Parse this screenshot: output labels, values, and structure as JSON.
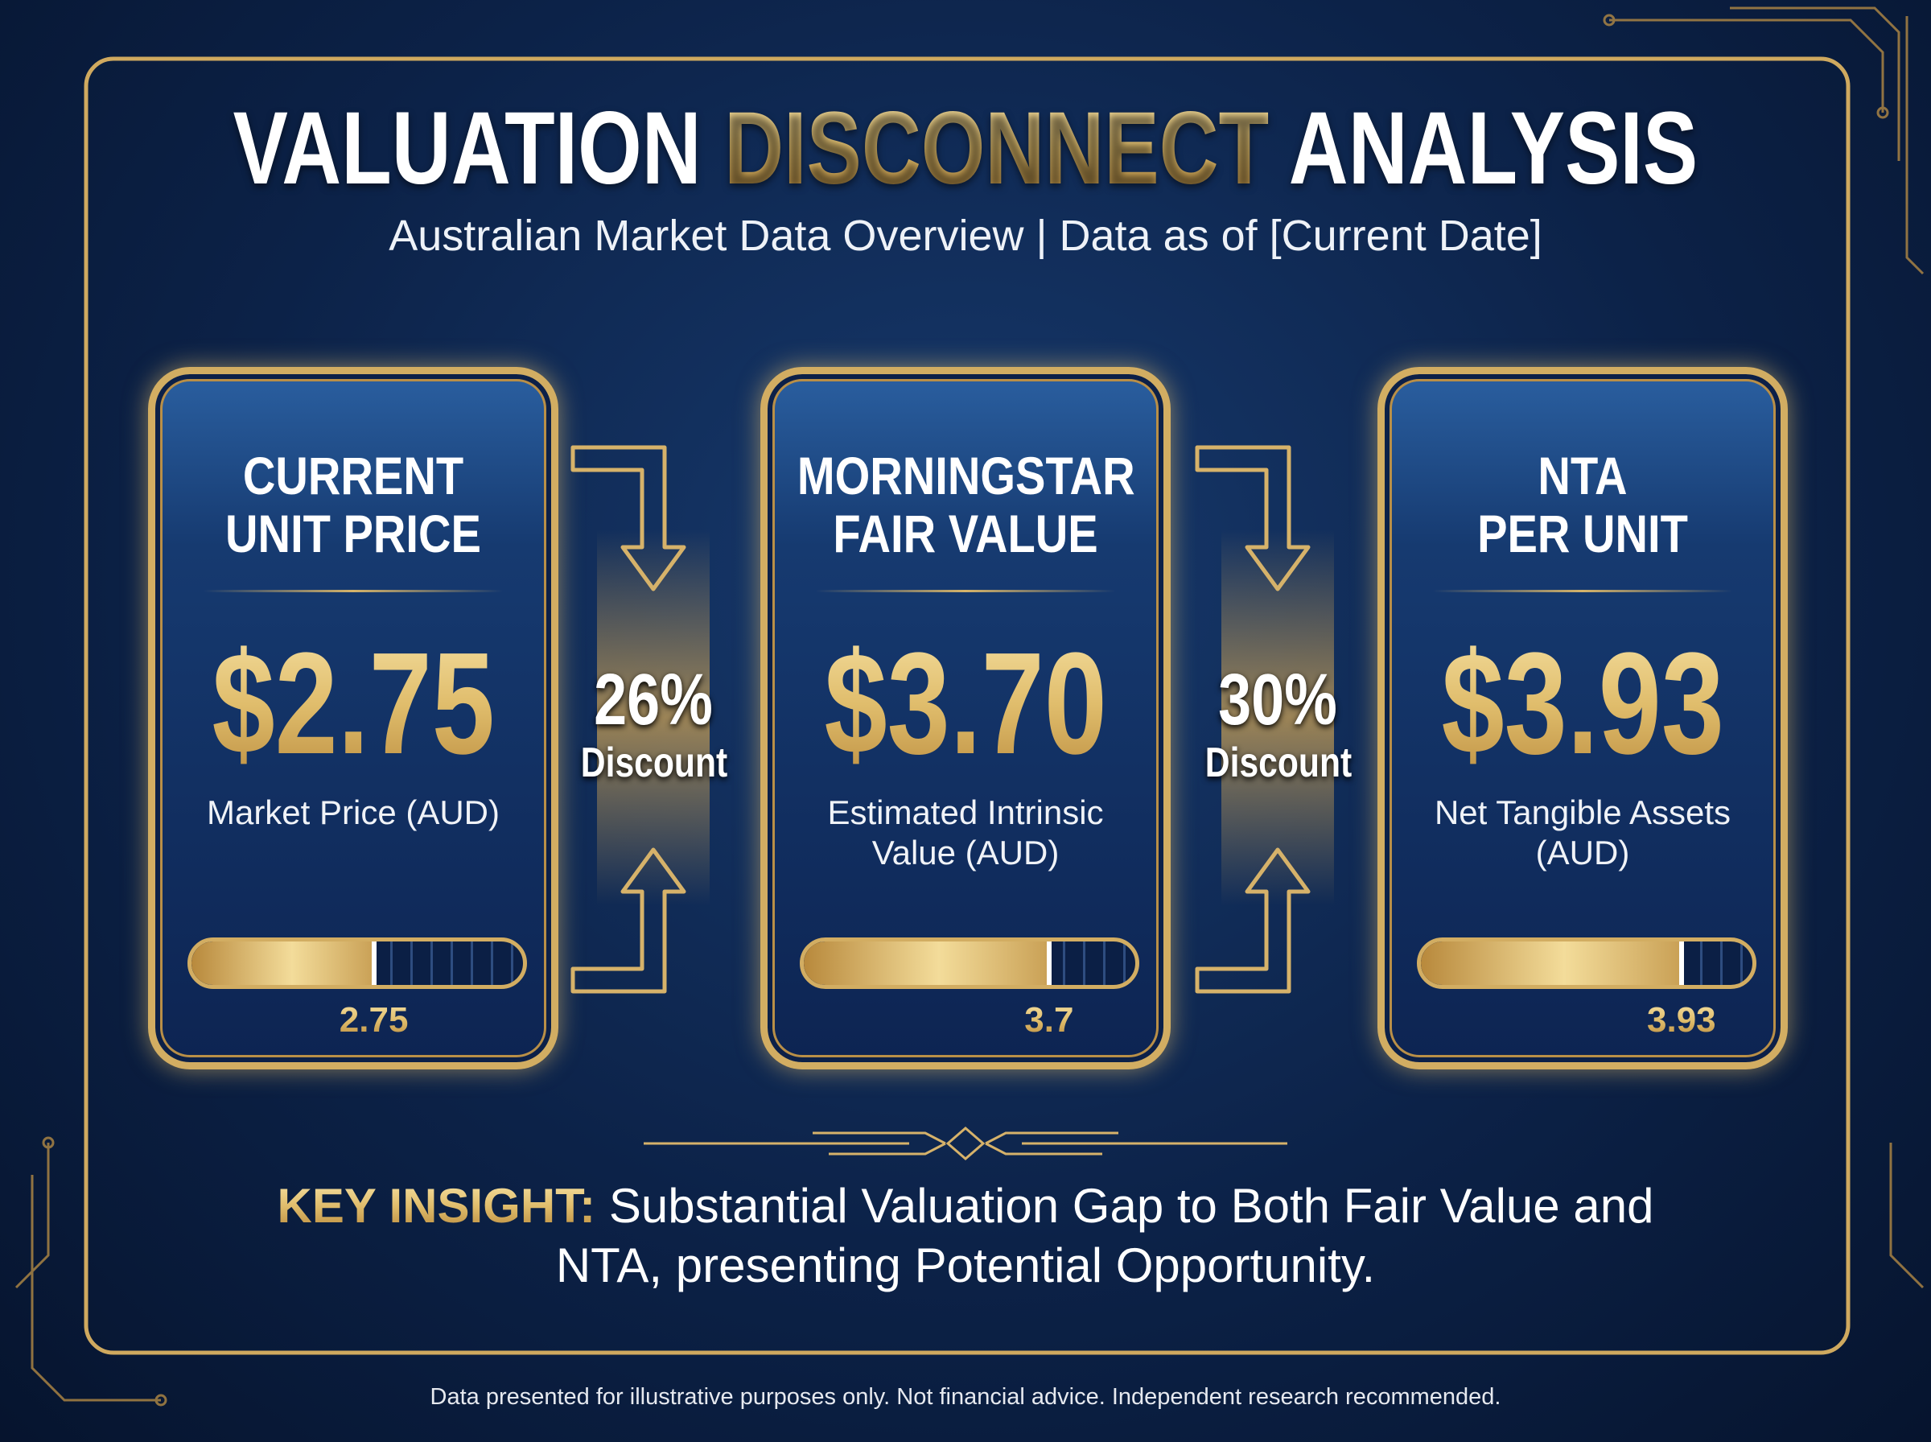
{
  "header": {
    "title": [
      "VALUATION",
      "DISCONNECT",
      "ANALYSIS"
    ],
    "subtitle": "Australian Market Data Overview | Data as of [Current Date]"
  },
  "gauge_range": [
    0,
    5
  ],
  "cards": [
    {
      "title": [
        "CURRENT",
        "UNIT PRICE"
      ],
      "price": "$2.75",
      "caption": "Market Price (AUD)",
      "value": 2.75
    },
    {
      "title": [
        "MORNINGSTAR",
        "FAIR VALUE"
      ],
      "price": "$3.70",
      "caption": "Estimated Intrinsic Value (AUD)",
      "value": 3.7
    },
    {
      "title": [
        "NTA",
        "PER UNIT"
      ],
      "price": "$3.93",
      "caption": "Net Tangible Assets (AUD)",
      "value": 3.93
    }
  ],
  "discounts": [
    {
      "percent": "26%",
      "label": "Discount"
    },
    {
      "percent": "30%",
      "label": "Discount"
    }
  ],
  "insight": {
    "label": "KEY INSIGHT:",
    "text": "Substantial Valuation Gap to Both Fair Value and NTA, presenting Potential Opportunity."
  },
  "footer": "Data presented for illustrative purposes only. Not financial advice. Independent research recommended."
}
